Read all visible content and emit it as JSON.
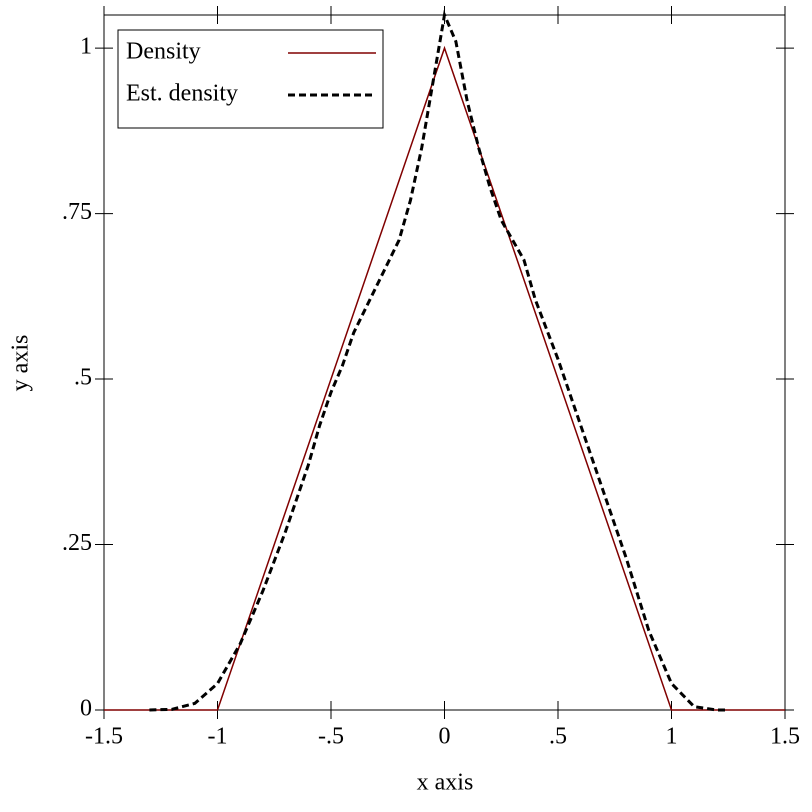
{
  "chart_data": {
    "type": "line",
    "xlabel": "x axis",
    "ylabel": "y axis",
    "xlim": [
      -1.5,
      1.5
    ],
    "ylim": [
      0,
      1.05
    ],
    "xticks": [
      -1.5,
      -1,
      {
        "value": -0.5,
        "label": "-.5"
      },
      0,
      {
        "value": 0.5,
        "label": ".5"
      },
      1,
      1.5
    ],
    "yticks": [
      0,
      {
        "value": 0.25,
        "label": ".25"
      },
      {
        "value": 0.5,
        "label": ".5"
      },
      {
        "value": 0.75,
        "label": ".75"
      },
      1
    ],
    "legend": "top-left",
    "series": [
      {
        "name": "Density",
        "color": "#800000",
        "dash": false,
        "x": [
          -1.5,
          -1,
          0,
          1,
          1.5
        ],
        "values": [
          0,
          0,
          1,
          0,
          0
        ]
      },
      {
        "name": "Est. density",
        "color": "#000000",
        "dash": true,
        "x": [
          -1.3,
          -1.2,
          -1.1,
          -1.0,
          -0.9,
          -0.8,
          -0.7,
          -0.6,
          -0.55,
          -0.5,
          -0.45,
          -0.4,
          -0.3,
          -0.2,
          -0.15,
          -0.1,
          -0.05,
          0,
          0.05,
          0.1,
          0.15,
          0.2,
          0.25,
          0.3,
          0.35,
          0.4,
          0.5,
          0.6,
          0.7,
          0.8,
          0.9,
          1.0,
          1.1,
          1.2,
          1.25
        ],
        "values": [
          0,
          0.001,
          0.01,
          0.04,
          0.1,
          0.18,
          0.27,
          0.37,
          0.43,
          0.48,
          0.52,
          0.57,
          0.64,
          0.71,
          0.77,
          0.85,
          0.95,
          1.05,
          1.01,
          0.92,
          0.85,
          0.79,
          0.74,
          0.71,
          0.68,
          0.62,
          0.53,
          0.43,
          0.33,
          0.23,
          0.12,
          0.04,
          0.005,
          0,
          0
        ]
      }
    ]
  }
}
